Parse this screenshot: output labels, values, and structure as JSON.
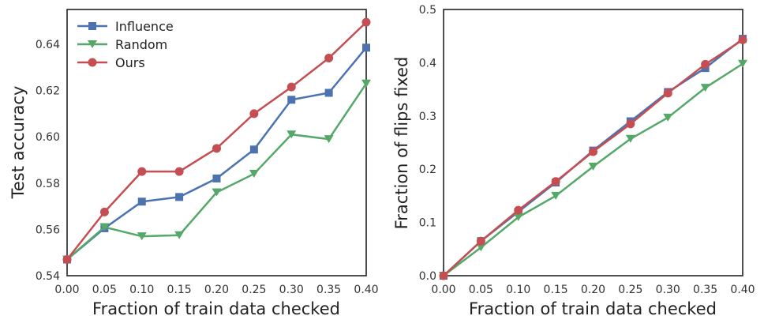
{
  "colors": {
    "Influence": "#4c72b0",
    "Random": "#55a868",
    "Ours": "#c44e52"
  },
  "chart_data": [
    {
      "type": "line",
      "xlabel": "Fraction of train data checked",
      "ylabel": "Test accuracy",
      "x": [
        0.0,
        0.05,
        0.1,
        0.15,
        0.2,
        0.25,
        0.3,
        0.35,
        0.4
      ],
      "xlim": [
        0.0,
        0.4
      ],
      "ylim": [
        0.54,
        0.655
      ],
      "xticks": [
        "0.00",
        "0.05",
        "0.10",
        "0.15",
        "0.20",
        "0.25",
        "0.30",
        "0.35",
        "0.40"
      ],
      "yticks": [
        "0.54",
        "0.56",
        "0.58",
        "0.60",
        "0.62",
        "0.64"
      ],
      "ytick_values": [
        0.54,
        0.56,
        0.58,
        0.6,
        0.62,
        0.64
      ],
      "legend": "top-left",
      "series": [
        {
          "name": "Influence",
          "marker": "square",
          "values": [
            0.547,
            0.5605,
            0.572,
            0.574,
            0.582,
            0.5945,
            0.616,
            0.619,
            0.6385
          ]
        },
        {
          "name": "Random",
          "marker": "triangle-down",
          "values": [
            0.547,
            0.561,
            0.557,
            0.5575,
            0.576,
            0.584,
            0.601,
            0.599,
            0.623
          ]
        },
        {
          "name": "Ours",
          "marker": "circle",
          "values": [
            0.547,
            0.5675,
            0.585,
            0.585,
            0.595,
            0.61,
            0.6215,
            0.634,
            0.6495
          ]
        }
      ]
    },
    {
      "type": "line",
      "xlabel": "Fraction of train data checked",
      "ylabel": "Fraction of flips fixed",
      "x": [
        0.0,
        0.05,
        0.1,
        0.15,
        0.2,
        0.25,
        0.3,
        0.35,
        0.4
      ],
      "xlim": [
        0.0,
        0.4
      ],
      "ylim": [
        0.0,
        0.5
      ],
      "xticks": [
        "0.00",
        "0.05",
        "0.10",
        "0.15",
        "0.20",
        "0.25",
        "0.30",
        "0.35",
        "0.40"
      ],
      "yticks": [
        "0.0",
        "0.1",
        "0.2",
        "0.3",
        "0.4",
        "0.5"
      ],
      "ytick_values": [
        0.0,
        0.1,
        0.2,
        0.3,
        0.4,
        0.5
      ],
      "series": [
        {
          "name": "Influence",
          "marker": "square",
          "values": [
            0.0,
            0.065,
            0.12,
            0.175,
            0.235,
            0.29,
            0.345,
            0.39,
            0.445
          ]
        },
        {
          "name": "Random",
          "marker": "triangle-down",
          "values": [
            0.0,
            0.053,
            0.11,
            0.15,
            0.205,
            0.257,
            0.297,
            0.353,
            0.398
          ]
        },
        {
          "name": "Ours",
          "marker": "circle",
          "values": [
            0.0,
            0.065,
            0.123,
            0.177,
            0.233,
            0.285,
            0.343,
            0.397,
            0.443
          ]
        }
      ]
    }
  ]
}
